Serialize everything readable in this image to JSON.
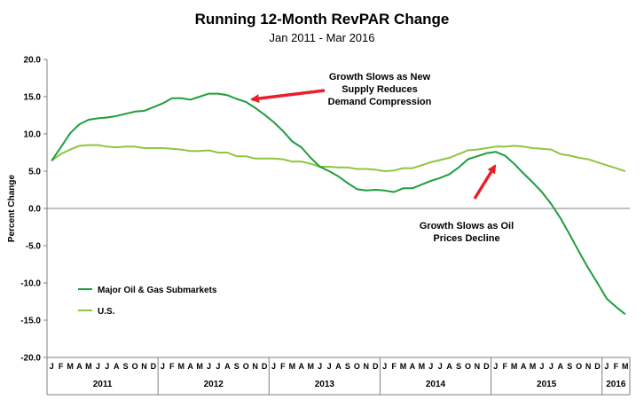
{
  "chart_data": {
    "type": "line",
    "title": "Running 12-Month RevPAR Change",
    "subtitle": "Jan 2011 - Mar 2016",
    "ylabel": "Percent Change",
    "xlabel": "",
    "ylim": [
      -20,
      20
    ],
    "yticks": [
      "-20.0",
      "-15.0",
      "-10.0",
      "-5.0",
      "0.0",
      "5.0",
      "10.0",
      "15.0",
      "20.0"
    ],
    "grid": false,
    "legend_position": "bottom-left",
    "month_labels": [
      "J",
      "F",
      "M",
      "A",
      "M",
      "J",
      "J",
      "A",
      "S",
      "O",
      "N",
      "D",
      "J",
      "F",
      "M",
      "A",
      "M",
      "J",
      "J",
      "A",
      "S",
      "O",
      "N",
      "D",
      "J",
      "F",
      "M",
      "A",
      "M",
      "J",
      "J",
      "A",
      "S",
      "O",
      "N",
      "D",
      "J",
      "F",
      "M",
      "A",
      "M",
      "J",
      "J",
      "A",
      "S",
      "O",
      "N",
      "D",
      "J",
      "F",
      "M",
      "A",
      "M",
      "J",
      "J",
      "A",
      "S",
      "O",
      "N",
      "D",
      "J",
      "F",
      "M"
    ],
    "years": [
      "2011",
      "2012",
      "2013",
      "2014",
      "2015",
      "2016"
    ],
    "series": [
      {
        "name": "Major Oil & Gas Submarkets",
        "color": "#1e9e3c",
        "values": [
          6.4,
          8.2,
          10.1,
          11.3,
          11.9,
          12.1,
          12.2,
          12.4,
          12.7,
          13.0,
          13.1,
          13.6,
          14.1,
          14.8,
          14.8,
          14.6,
          15.0,
          15.4,
          15.4,
          15.2,
          14.7,
          14.3,
          13.5,
          12.6,
          11.6,
          10.4,
          9.0,
          8.2,
          6.8,
          5.6,
          5.0,
          4.3,
          3.4,
          2.6,
          2.4,
          2.5,
          2.4,
          2.2,
          2.7,
          2.7,
          3.2,
          3.7,
          4.1,
          4.6,
          5.5,
          6.6,
          7.0,
          7.4,
          7.6,
          7.1,
          6.0,
          4.7,
          3.5,
          2.2,
          0.6,
          -1.3,
          -3.5,
          -5.8,
          -8.0,
          -10.0,
          -12.1,
          -13.2,
          -14.2
        ]
      },
      {
        "name": "U.S.",
        "color": "#8dc63f",
        "values": [
          6.4,
          7.3,
          7.9,
          8.4,
          8.5,
          8.5,
          8.3,
          8.2,
          8.3,
          8.3,
          8.1,
          8.1,
          8.1,
          8.0,
          7.9,
          7.7,
          7.7,
          7.8,
          7.5,
          7.5,
          7.0,
          7.0,
          6.7,
          6.7,
          6.7,
          6.6,
          6.3,
          6.3,
          6.0,
          5.6,
          5.6,
          5.5,
          5.5,
          5.3,
          5.3,
          5.2,
          5.0,
          5.1,
          5.4,
          5.4,
          5.8,
          6.2,
          6.5,
          6.8,
          7.3,
          7.8,
          7.9,
          8.1,
          8.3,
          8.3,
          8.4,
          8.3,
          8.1,
          8.0,
          7.9,
          7.3,
          7.1,
          6.8,
          6.6,
          6.2,
          5.8,
          5.4,
          5.0
        ]
      }
    ],
    "annotations": [
      {
        "lines": [
          "Growth Slows as New",
          "Supply Reduces",
          "Demand Compression"
        ]
      },
      {
        "lines": [
          "Growth Slows as Oil",
          "Prices Decline"
        ]
      }
    ]
  },
  "colors": {
    "arrow": "#e8202a",
    "axis": "#7f7f7f"
  }
}
